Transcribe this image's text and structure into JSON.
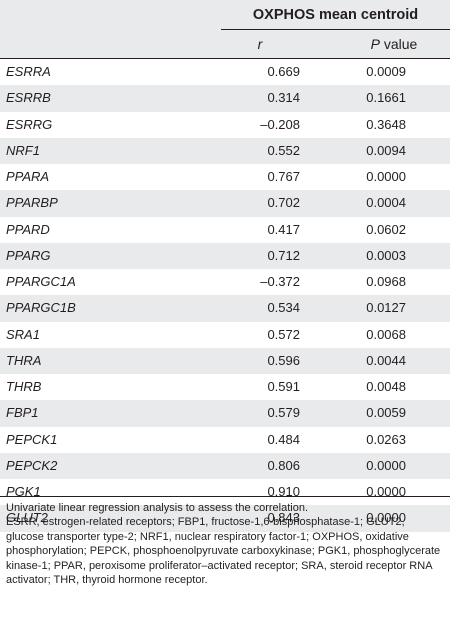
{
  "table": {
    "group_header": "OXPHOS mean centroid",
    "columns": {
      "r": "r",
      "p_italic": "P",
      "p_rest": " value"
    },
    "rows": [
      {
        "gene": "ESRRA",
        "r": "0.669",
        "p": "0.0009"
      },
      {
        "gene": "ESRRB",
        "r": "0.314",
        "p": "0.1661"
      },
      {
        "gene": "ESRRG",
        "r": "–0.208",
        "p": "0.3648"
      },
      {
        "gene": "NRF1",
        "r": "0.552",
        "p": "0.0094"
      },
      {
        "gene": "PPARA",
        "r": "0.767",
        "p": "0.0000"
      },
      {
        "gene": "PPARBP",
        "r": "0.702",
        "p": "0.0004"
      },
      {
        "gene": "PPARD",
        "r": "0.417",
        "p": "0.0602"
      },
      {
        "gene": "PPARG",
        "r": "0.712",
        "p": "0.0003"
      },
      {
        "gene": "PPARGC1A",
        "r": "–0.372",
        "p": "0.0968"
      },
      {
        "gene": "PPARGC1B",
        "r": "0.534",
        "p": "0.0127"
      },
      {
        "gene": "SRA1",
        "r": "0.572",
        "p": "0.0068"
      },
      {
        "gene": "THRA",
        "r": "0.596",
        "p": "0.0044"
      },
      {
        "gene": "THRB",
        "r": "0.591",
        "p": "0.0048"
      },
      {
        "gene": "FBP1",
        "r": "0.579",
        "p": "0.0059"
      },
      {
        "gene": "PEPCK1",
        "r": "0.484",
        "p": "0.0263"
      },
      {
        "gene": "PEPCK2",
        "r": "0.806",
        "p": "0.0000"
      },
      {
        "gene": "PGK1",
        "r": "0.910",
        "p": "0.0000"
      },
      {
        "gene": "GLUT2",
        "r": "0.843",
        "p": "0.0000"
      }
    ]
  },
  "footnote": {
    "line1": "Univariate linear regression analysis to assess the correlation.",
    "line2": "ESRR, estrogen-related receptors; FBP1, fructose-1,6-bisphosphatase-1; GLUT2, glucose transporter type-2; NRF1, nuclear respiratory factor-1; OXPHOS, oxidative phosphorylation; PEPCK, phosphoenolpyruvate carboxykinase; PGK1, phosphoglycerate kinase-1; PPAR, peroxisome proliferator–activated receptor; SRA, steroid receptor RNA activator; THR, thyroid hormone receptor."
  },
  "colors": {
    "band": "#e9eaeb",
    "text": "#231f20"
  }
}
